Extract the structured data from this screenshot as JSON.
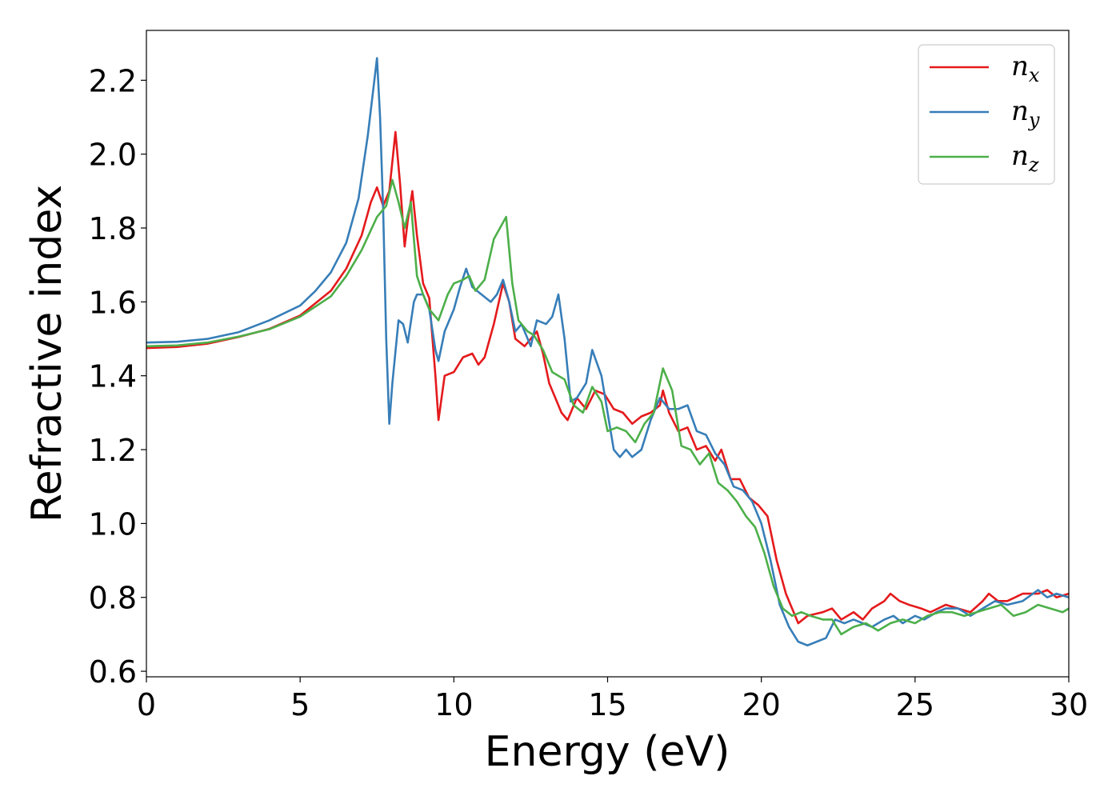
{
  "chart_data": {
    "type": "line",
    "title": "",
    "xlabel": "Energy (eV)",
    "ylabel": "Refractive index",
    "xlim": [
      0,
      30
    ],
    "ylim": [
      0.585,
      2.335
    ],
    "xticks": [
      0,
      5,
      10,
      15,
      20,
      25,
      30
    ],
    "xtick_labels": [
      "0",
      "5",
      "10",
      "15",
      "20",
      "25",
      "30"
    ],
    "yticks": [
      0.6,
      0.8,
      1.0,
      1.2,
      1.4,
      1.6,
      1.8,
      2.0,
      2.2
    ],
    "ytick_labels": [
      "0.6",
      "0.8",
      "1.0",
      "1.2",
      "1.4",
      "1.6",
      "1.8",
      "2.0",
      "2.2"
    ],
    "grid": false,
    "legend": "top-right",
    "series": [
      {
        "name": "n_x",
        "legend_base": "n",
        "legend_sub": "x",
        "color": "#e41a1c",
        "points": [
          [
            0,
            1.475
          ],
          [
            1,
            1.478
          ],
          [
            2,
            1.487
          ],
          [
            3,
            1.505
          ],
          [
            4,
            1.527
          ],
          [
            5,
            1.563
          ],
          [
            6,
            1.63
          ],
          [
            6.5,
            1.69
          ],
          [
            7,
            1.78
          ],
          [
            7.3,
            1.87
          ],
          [
            7.5,
            1.91
          ],
          [
            7.7,
            1.86
          ],
          [
            7.9,
            1.9
          ],
          [
            8.1,
            2.06
          ],
          [
            8.25,
            1.92
          ],
          [
            8.4,
            1.75
          ],
          [
            8.5,
            1.82
          ],
          [
            8.65,
            1.9
          ],
          [
            8.8,
            1.78
          ],
          [
            9.0,
            1.65
          ],
          [
            9.2,
            1.61
          ],
          [
            9.4,
            1.4
          ],
          [
            9.5,
            1.28
          ],
          [
            9.7,
            1.4
          ],
          [
            10.0,
            1.41
          ],
          [
            10.3,
            1.45
          ],
          [
            10.6,
            1.46
          ],
          [
            10.8,
            1.43
          ],
          [
            11.0,
            1.45
          ],
          [
            11.3,
            1.54
          ],
          [
            11.6,
            1.65
          ],
          [
            11.8,
            1.6
          ],
          [
            12.0,
            1.5
          ],
          [
            12.3,
            1.48
          ],
          [
            12.5,
            1.5
          ],
          [
            12.7,
            1.52
          ],
          [
            12.9,
            1.46
          ],
          [
            13.1,
            1.38
          ],
          [
            13.3,
            1.34
          ],
          [
            13.5,
            1.3
          ],
          [
            13.7,
            1.28
          ],
          [
            14.0,
            1.34
          ],
          [
            14.3,
            1.31
          ],
          [
            14.6,
            1.36
          ],
          [
            14.9,
            1.35
          ],
          [
            15.2,
            1.31
          ],
          [
            15.5,
            1.3
          ],
          [
            15.8,
            1.27
          ],
          [
            16.1,
            1.29
          ],
          [
            16.4,
            1.3
          ],
          [
            16.7,
            1.32
          ],
          [
            16.8,
            1.36
          ],
          [
            17.0,
            1.3
          ],
          [
            17.3,
            1.25
          ],
          [
            17.6,
            1.26
          ],
          [
            17.9,
            1.2
          ],
          [
            18.2,
            1.21
          ],
          [
            18.5,
            1.17
          ],
          [
            18.7,
            1.2
          ],
          [
            19.0,
            1.12
          ],
          [
            19.3,
            1.12
          ],
          [
            19.6,
            1.07
          ],
          [
            19.9,
            1.05
          ],
          [
            20.2,
            1.02
          ],
          [
            20.5,
            0.9
          ],
          [
            20.8,
            0.81
          ],
          [
            21.0,
            0.77
          ],
          [
            21.2,
            0.73
          ],
          [
            21.5,
            0.75
          ],
          [
            22.0,
            0.76
          ],
          [
            22.3,
            0.77
          ],
          [
            22.6,
            0.74
          ],
          [
            23.0,
            0.76
          ],
          [
            23.3,
            0.74
          ],
          [
            23.6,
            0.77
          ],
          [
            24.0,
            0.79
          ],
          [
            24.2,
            0.81
          ],
          [
            24.5,
            0.79
          ],
          [
            24.8,
            0.78
          ],
          [
            25.2,
            0.77
          ],
          [
            25.5,
            0.76
          ],
          [
            26.0,
            0.78
          ],
          [
            26.4,
            0.77
          ],
          [
            26.8,
            0.76
          ],
          [
            27.2,
            0.79
          ],
          [
            27.4,
            0.81
          ],
          [
            27.7,
            0.79
          ],
          [
            28.0,
            0.79
          ],
          [
            28.5,
            0.81
          ],
          [
            29.0,
            0.81
          ],
          [
            29.3,
            0.82
          ],
          [
            29.6,
            0.8
          ],
          [
            30.0,
            0.81
          ]
        ]
      },
      {
        "name": "n_y",
        "legend_base": "n",
        "legend_sub": "y",
        "color": "#377eb8",
        "points": [
          [
            0,
            1.49
          ],
          [
            1,
            1.492
          ],
          [
            2,
            1.5
          ],
          [
            3,
            1.518
          ],
          [
            4,
            1.55
          ],
          [
            5,
            1.59
          ],
          [
            5.5,
            1.63
          ],
          [
            6,
            1.68
          ],
          [
            6.5,
            1.76
          ],
          [
            6.9,
            1.88
          ],
          [
            7.2,
            2.05
          ],
          [
            7.5,
            2.26
          ],
          [
            7.6,
            2.1
          ],
          [
            7.7,
            1.85
          ],
          [
            7.8,
            1.5
          ],
          [
            7.9,
            1.27
          ],
          [
            8.0,
            1.38
          ],
          [
            8.2,
            1.55
          ],
          [
            8.35,
            1.54
          ],
          [
            8.5,
            1.49
          ],
          [
            8.7,
            1.6
          ],
          [
            8.8,
            1.62
          ],
          [
            9.0,
            1.62
          ],
          [
            9.2,
            1.58
          ],
          [
            9.4,
            1.47
          ],
          [
            9.5,
            1.44
          ],
          [
            9.7,
            1.52
          ],
          [
            10.0,
            1.58
          ],
          [
            10.2,
            1.64
          ],
          [
            10.4,
            1.69
          ],
          [
            10.6,
            1.64
          ],
          [
            10.9,
            1.62
          ],
          [
            11.2,
            1.6
          ],
          [
            11.4,
            1.62
          ],
          [
            11.6,
            1.66
          ],
          [
            11.8,
            1.6
          ],
          [
            12.0,
            1.52
          ],
          [
            12.2,
            1.54
          ],
          [
            12.5,
            1.48
          ],
          [
            12.7,
            1.55
          ],
          [
            13.0,
            1.54
          ],
          [
            13.2,
            1.56
          ],
          [
            13.4,
            1.62
          ],
          [
            13.6,
            1.5
          ],
          [
            13.8,
            1.33
          ],
          [
            14.0,
            1.34
          ],
          [
            14.3,
            1.38
          ],
          [
            14.5,
            1.47
          ],
          [
            14.8,
            1.4
          ],
          [
            15.0,
            1.3
          ],
          [
            15.2,
            1.2
          ],
          [
            15.4,
            1.18
          ],
          [
            15.6,
            1.2
          ],
          [
            15.8,
            1.18
          ],
          [
            16.1,
            1.2
          ],
          [
            16.4,
            1.28
          ],
          [
            16.7,
            1.34
          ],
          [
            17.0,
            1.31
          ],
          [
            17.3,
            1.31
          ],
          [
            17.6,
            1.32
          ],
          [
            17.9,
            1.25
          ],
          [
            18.2,
            1.24
          ],
          [
            18.5,
            1.19
          ],
          [
            18.8,
            1.16
          ],
          [
            19.1,
            1.1
          ],
          [
            19.4,
            1.09
          ],
          [
            19.7,
            1.06
          ],
          [
            20.0,
            1.0
          ],
          [
            20.3,
            0.9
          ],
          [
            20.6,
            0.78
          ],
          [
            20.9,
            0.72
          ],
          [
            21.2,
            0.68
          ],
          [
            21.5,
            0.67
          ],
          [
            21.8,
            0.68
          ],
          [
            22.1,
            0.69
          ],
          [
            22.4,
            0.74
          ],
          [
            22.7,
            0.73
          ],
          [
            23.0,
            0.74
          ],
          [
            23.3,
            0.73
          ],
          [
            23.6,
            0.72
          ],
          [
            24.0,
            0.74
          ],
          [
            24.3,
            0.75
          ],
          [
            24.6,
            0.73
          ],
          [
            25.0,
            0.75
          ],
          [
            25.3,
            0.74
          ],
          [
            25.7,
            0.76
          ],
          [
            26.0,
            0.77
          ],
          [
            26.4,
            0.77
          ],
          [
            26.8,
            0.75
          ],
          [
            27.2,
            0.77
          ],
          [
            27.6,
            0.79
          ],
          [
            28.0,
            0.78
          ],
          [
            28.5,
            0.79
          ],
          [
            29.0,
            0.82
          ],
          [
            29.3,
            0.8
          ],
          [
            29.6,
            0.81
          ],
          [
            30.0,
            0.8
          ]
        ]
      },
      {
        "name": "n_z",
        "legend_base": "n",
        "legend_sub": "z",
        "color": "#4daf4a",
        "points": [
          [
            0,
            1.48
          ],
          [
            1,
            1.482
          ],
          [
            2,
            1.49
          ],
          [
            3,
            1.506
          ],
          [
            4,
            1.526
          ],
          [
            5,
            1.56
          ],
          [
            6,
            1.615
          ],
          [
            6.5,
            1.67
          ],
          [
            7,
            1.74
          ],
          [
            7.5,
            1.83
          ],
          [
            7.8,
            1.86
          ],
          [
            8.0,
            1.93
          ],
          [
            8.2,
            1.87
          ],
          [
            8.4,
            1.8
          ],
          [
            8.6,
            1.87
          ],
          [
            8.8,
            1.67
          ],
          [
            9.0,
            1.62
          ],
          [
            9.2,
            1.58
          ],
          [
            9.5,
            1.55
          ],
          [
            9.8,
            1.62
          ],
          [
            10.0,
            1.65
          ],
          [
            10.3,
            1.66
          ],
          [
            10.5,
            1.67
          ],
          [
            10.7,
            1.63
          ],
          [
            11.0,
            1.66
          ],
          [
            11.3,
            1.77
          ],
          [
            11.5,
            1.8
          ],
          [
            11.7,
            1.83
          ],
          [
            11.9,
            1.65
          ],
          [
            12.1,
            1.55
          ],
          [
            12.4,
            1.52
          ],
          [
            12.6,
            1.51
          ],
          [
            12.9,
            1.47
          ],
          [
            13.2,
            1.41
          ],
          [
            13.6,
            1.39
          ],
          [
            13.9,
            1.32
          ],
          [
            14.2,
            1.3
          ],
          [
            14.5,
            1.37
          ],
          [
            14.8,
            1.33
          ],
          [
            15.0,
            1.25
          ],
          [
            15.3,
            1.26
          ],
          [
            15.6,
            1.25
          ],
          [
            15.9,
            1.22
          ],
          [
            16.2,
            1.27
          ],
          [
            16.5,
            1.3
          ],
          [
            16.8,
            1.42
          ],
          [
            17.1,
            1.36
          ],
          [
            17.4,
            1.21
          ],
          [
            17.7,
            1.2
          ],
          [
            18.0,
            1.16
          ],
          [
            18.3,
            1.19
          ],
          [
            18.6,
            1.11
          ],
          [
            18.9,
            1.09
          ],
          [
            19.2,
            1.06
          ],
          [
            19.5,
            1.02
          ],
          [
            19.8,
            0.99
          ],
          [
            20.1,
            0.92
          ],
          [
            20.4,
            0.83
          ],
          [
            20.7,
            0.77
          ],
          [
            21.0,
            0.75
          ],
          [
            21.3,
            0.76
          ],
          [
            21.6,
            0.75
          ],
          [
            22.0,
            0.74
          ],
          [
            22.3,
            0.74
          ],
          [
            22.6,
            0.7
          ],
          [
            23.0,
            0.72
          ],
          [
            23.4,
            0.73
          ],
          [
            23.8,
            0.71
          ],
          [
            24.2,
            0.73
          ],
          [
            24.6,
            0.74
          ],
          [
            25.0,
            0.73
          ],
          [
            25.4,
            0.75
          ],
          [
            25.8,
            0.76
          ],
          [
            26.2,
            0.76
          ],
          [
            26.6,
            0.75
          ],
          [
            27.0,
            0.76
          ],
          [
            27.4,
            0.77
          ],
          [
            27.8,
            0.78
          ],
          [
            28.2,
            0.75
          ],
          [
            28.6,
            0.76
          ],
          [
            29.0,
            0.78
          ],
          [
            29.4,
            0.77
          ],
          [
            29.8,
            0.76
          ],
          [
            30.0,
            0.77
          ]
        ]
      }
    ]
  }
}
